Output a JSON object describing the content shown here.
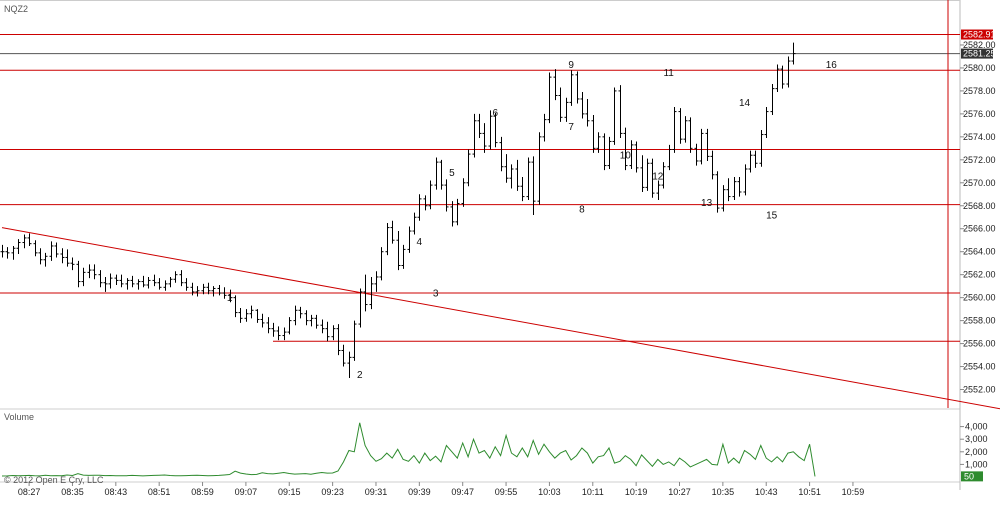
{
  "chart_data": {
    "type": "bar",
    "subtype": "ohlc",
    "symbol": "NQZ2",
    "copyright": "© 2012 Open E Cry, LLC",
    "price_panel": {
      "ylim": [
        2550,
        2584
      ],
      "y_ticks": [
        2552,
        2554,
        2556,
        2558,
        2560,
        2562,
        2564,
        2566,
        2568,
        2570,
        2572,
        2574,
        2576,
        2578,
        2580,
        2582
      ],
      "y_tick_labels": [
        "2552.00",
        "2554.00",
        "2556.00",
        "2558.00",
        "2560.00",
        "2562.00",
        "2564.00",
        "2566.00",
        "2568.00",
        "2570.00",
        "2572.00",
        "2574.00",
        "2576.00",
        "2578.00",
        "2580.00",
        "2582.00"
      ],
      "last_price": 2581.25,
      "last_price_label": "2581.25",
      "bar_color": "#000000",
      "grid": false
    },
    "x_axis": {
      "bar_minutes": 1,
      "start_time": "08:22",
      "ticks": [
        "08:27",
        "08:35",
        "08:43",
        "08:51",
        "08:59",
        "09:07",
        "09:15",
        "09:23",
        "09:31",
        "09:39",
        "09:47",
        "09:55",
        "10:03",
        "10:11",
        "10:19",
        "10:27",
        "10:35",
        "10:43",
        "10:51",
        "10:59"
      ]
    },
    "horizontal_lines": [
      {
        "price": 2582.91,
        "label": "2582.91",
        "color": "#cc0000"
      },
      {
        "price": 2579.8,
        "color": "#cc0000"
      },
      {
        "price": 2572.9,
        "color": "#cc0000"
      },
      {
        "price": 2568.1,
        "color": "#cc0000"
      },
      {
        "price": 2560.4,
        "color": "#cc0000"
      },
      {
        "price": 2556.2,
        "from_time": "09:12",
        "color": "#cc0000"
      }
    ],
    "trend_line": {
      "from": [
        "08:22",
        2566.1
      ],
      "to": [
        "11:30",
        2550.0
      ],
      "color": "#cc0000"
    },
    "vertical_line": {
      "time": "11:08",
      "color": "#cc0000"
    },
    "wave_labels": [
      {
        "text": "1",
        "time": "09:04",
        "price": 2559.7
      },
      {
        "text": "2",
        "time": "09:28",
        "price": 2553.0
      },
      {
        "text": "3",
        "time": "09:42",
        "price": 2560.1
      },
      {
        "text": "4",
        "time": "09:39",
        "price": 2564.6
      },
      {
        "text": "5",
        "time": "09:45",
        "price": 2570.6
      },
      {
        "text": "6",
        "time": "09:53",
        "price": 2575.8
      },
      {
        "text": "7",
        "time": "10:07",
        "price": 2574.6
      },
      {
        "text": "8",
        "time": "10:09",
        "price": 2567.4
      },
      {
        "text": "9",
        "time": "10:07",
        "price": 2580.0
      },
      {
        "text": "10",
        "time": "10:17",
        "price": 2572.1
      },
      {
        "text": "11",
        "time": "10:25",
        "price": 2579.3
      },
      {
        "text": "12",
        "time": "10:23",
        "price": 2570.3
      },
      {
        "text": "13",
        "time": "10:32",
        "price": 2568.0
      },
      {
        "text": "14",
        "time": "10:39",
        "price": 2576.7
      },
      {
        "text": "15",
        "time": "10:44",
        "price": 2566.9
      },
      {
        "text": "16",
        "time": "10:55",
        "price": 2580.0
      }
    ],
    "ohlc": [
      [
        2564.0,
        2564.6,
        2563.5,
        2564.0
      ],
      [
        2564.0,
        2564.4,
        2563.4,
        2563.9
      ],
      [
        2563.9,
        2564.5,
        2563.3,
        2564.3
      ],
      [
        2564.3,
        2565.1,
        2563.8,
        2564.8
      ],
      [
        2564.8,
        2565.5,
        2564.3,
        2565.2
      ],
      [
        2565.2,
        2565.6,
        2564.5,
        2564.7
      ],
      [
        2564.7,
        2565.0,
        2563.6,
        2563.9
      ],
      [
        2563.9,
        2564.3,
        2562.9,
        2563.3
      ],
      [
        2563.3,
        2563.9,
        2562.7,
        2563.6
      ],
      [
        2563.6,
        2564.9,
        2563.2,
        2564.5
      ],
      [
        2564.5,
        2564.8,
        2563.5,
        2563.8
      ],
      [
        2563.8,
        2564.3,
        2563.0,
        2563.5
      ],
      [
        2563.5,
        2564.2,
        2562.7,
        2563.0
      ],
      [
        2563.0,
        2563.5,
        2562.4,
        2562.9
      ],
      [
        2562.9,
        2563.2,
        2560.9,
        2561.4
      ],
      [
        2561.4,
        2562.6,
        2561.0,
        2562.2
      ],
      [
        2562.2,
        2562.9,
        2561.7,
        2562.4
      ],
      [
        2562.4,
        2562.9,
        2561.6,
        2562.0
      ],
      [
        2562.0,
        2562.4,
        2560.9,
        2561.3
      ],
      [
        2561.3,
        2561.8,
        2560.5,
        2561.2
      ],
      [
        2561.2,
        2562.1,
        2560.8,
        2561.7
      ],
      [
        2561.7,
        2562.0,
        2561.1,
        2561.5
      ],
      [
        2561.5,
        2562.0,
        2560.9,
        2561.2
      ],
      [
        2561.2,
        2561.7,
        2560.7,
        2561.5
      ],
      [
        2561.5,
        2561.9,
        2560.9,
        2561.2
      ],
      [
        2561.2,
        2561.6,
        2560.7,
        2561.4
      ],
      [
        2561.4,
        2561.9,
        2560.9,
        2561.1
      ],
      [
        2561.1,
        2561.8,
        2560.8,
        2561.5
      ],
      [
        2561.5,
        2562.0,
        2561.0,
        2561.3
      ],
      [
        2561.3,
        2561.7,
        2560.7,
        2560.9
      ],
      [
        2560.9,
        2561.5,
        2560.6,
        2561.2
      ],
      [
        2561.2,
        2561.8,
        2560.9,
        2561.6
      ],
      [
        2561.6,
        2562.3,
        2561.3,
        2562.0
      ],
      [
        2562.0,
        2562.4,
        2561.0,
        2561.3
      ],
      [
        2561.3,
        2561.7,
        2560.6,
        2560.9
      ],
      [
        2560.9,
        2561.3,
        2560.2,
        2560.5
      ],
      [
        2560.5,
        2561.0,
        2560.1,
        2560.6
      ],
      [
        2560.6,
        2561.2,
        2560.3,
        2560.9
      ],
      [
        2560.9,
        2561.3,
        2560.3,
        2560.6
      ],
      [
        2560.6,
        2561.0,
        2560.1,
        2560.8
      ],
      [
        2560.8,
        2561.1,
        2560.2,
        2560.4
      ],
      [
        2560.4,
        2560.9,
        2559.9,
        2560.2
      ],
      [
        2560.2,
        2560.7,
        2559.6,
        2560.0
      ],
      [
        2560.0,
        2560.2,
        2558.3,
        2558.7
      ],
      [
        2558.7,
        2559.1,
        2557.8,
        2558.2
      ],
      [
        2558.2,
        2559.0,
        2557.9,
        2558.6
      ],
      [
        2558.6,
        2559.3,
        2558.2,
        2558.9
      ],
      [
        2558.9,
        2559.0,
        2557.8,
        2558.1
      ],
      [
        2558.1,
        2558.6,
        2557.4,
        2557.8
      ],
      [
        2557.8,
        2558.3,
        2556.9,
        2557.3
      ],
      [
        2557.3,
        2557.8,
        2556.6,
        2557.1
      ],
      [
        2557.1,
        2557.5,
        2556.3,
        2556.7
      ],
      [
        2556.7,
        2557.4,
        2556.3,
        2557.0
      ],
      [
        2557.0,
        2558.3,
        2556.8,
        2558.0
      ],
      [
        2558.0,
        2559.3,
        2557.6,
        2558.9
      ],
      [
        2558.9,
        2559.2,
        2558.2,
        2558.6
      ],
      [
        2558.6,
        2558.9,
        2557.6,
        2558.0
      ],
      [
        2558.0,
        2558.5,
        2557.5,
        2558.2
      ],
      [
        2558.2,
        2558.5,
        2557.3,
        2557.6
      ],
      [
        2557.6,
        2558.1,
        2556.9,
        2557.3
      ],
      [
        2557.3,
        2557.9,
        2556.2,
        2556.6
      ],
      [
        2556.6,
        2557.6,
        2556.3,
        2557.3
      ],
      [
        2557.3,
        2557.7,
        2555.0,
        2555.4
      ],
      [
        2555.4,
        2555.9,
        2554.0,
        2554.3
      ],
      [
        2554.3,
        2555.3,
        2553.0,
        2554.8
      ],
      [
        2554.8,
        2558.0,
        2554.5,
        2557.7
      ],
      [
        2557.7,
        2560.8,
        2557.4,
        2560.5
      ],
      [
        2560.5,
        2562.0,
        2558.8,
        2559.4
      ],
      [
        2559.4,
        2561.8,
        2559.0,
        2561.2
      ],
      [
        2561.2,
        2562.3,
        2560.5,
        2561.8
      ],
      [
        2561.8,
        2564.4,
        2561.5,
        2564.0
      ],
      [
        2564.0,
        2566.5,
        2563.7,
        2566.1
      ],
      [
        2566.1,
        2566.7,
        2564.7,
        2565.0
      ],
      [
        2565.0,
        2565.8,
        2562.4,
        2562.8
      ],
      [
        2562.8,
        2564.6,
        2562.5,
        2564.2
      ],
      [
        2564.2,
        2566.2,
        2563.9,
        2565.8
      ],
      [
        2565.8,
        2567.4,
        2565.5,
        2567.0
      ],
      [
        2567.0,
        2569.0,
        2566.7,
        2568.6
      ],
      [
        2568.6,
        2568.9,
        2567.6,
        2568.0
      ],
      [
        2568.0,
        2570.2,
        2567.7,
        2569.8
      ],
      [
        2569.8,
        2572.2,
        2569.4,
        2571.8
      ],
      [
        2571.8,
        2572.0,
        2569.4,
        2569.8
      ],
      [
        2569.8,
        2570.3,
        2567.5,
        2567.9
      ],
      [
        2567.9,
        2568.4,
        2566.2,
        2566.6
      ],
      [
        2566.6,
        2568.6,
        2566.3,
        2568.2
      ],
      [
        2568.2,
        2570.4,
        2567.9,
        2570.0
      ],
      [
        2570.0,
        2572.9,
        2569.7,
        2572.5
      ],
      [
        2572.5,
        2576.0,
        2572.2,
        2575.4
      ],
      [
        2575.4,
        2576.0,
        2573.9,
        2574.3
      ],
      [
        2574.3,
        2575.2,
        2572.6,
        2573.2
      ],
      [
        2573.2,
        2576.3,
        2572.9,
        2575.8
      ],
      [
        2575.8,
        2576.1,
        2573.1,
        2573.5
      ],
      [
        2573.5,
        2574.0,
        2571.0,
        2571.4
      ],
      [
        2571.4,
        2572.5,
        2570.0,
        2570.4
      ],
      [
        2570.4,
        2571.6,
        2569.5,
        2571.2
      ],
      [
        2571.2,
        2572.0,
        2569.3,
        2569.7
      ],
      [
        2569.7,
        2570.5,
        2568.4,
        2568.8
      ],
      [
        2568.8,
        2572.2,
        2568.5,
        2571.8
      ],
      [
        2571.8,
        2572.3,
        2567.2,
        2568.4
      ],
      [
        2568.4,
        2574.4,
        2568.1,
        2574.0
      ],
      [
        2574.0,
        2576.0,
        2573.6,
        2575.5
      ],
      [
        2575.5,
        2579.6,
        2575.2,
        2579.2
      ],
      [
        2579.2,
        2579.9,
        2577.2,
        2577.6
      ],
      [
        2577.6,
        2578.3,
        2575.3,
        2575.7
      ],
      [
        2575.7,
        2577.4,
        2575.3,
        2577.0
      ],
      [
        2577.0,
        2579.8,
        2576.7,
        2579.4
      ],
      [
        2579.4,
        2579.7,
        2576.9,
        2577.3
      ],
      [
        2577.3,
        2577.9,
        2575.6,
        2576.0
      ],
      [
        2576.0,
        2577.3,
        2574.9,
        2575.4
      ],
      [
        2575.4,
        2575.9,
        2572.6,
        2573.0
      ],
      [
        2573.0,
        2574.4,
        2572.6,
        2574.0
      ],
      [
        2574.0,
        2574.3,
        2571.1,
        2571.5
      ],
      [
        2571.5,
        2574.0,
        2571.2,
        2573.6
      ],
      [
        2573.6,
        2578.3,
        2573.3,
        2578.0
      ],
      [
        2578.0,
        2578.5,
        2573.9,
        2574.3
      ],
      [
        2574.3,
        2574.8,
        2571.1,
        2571.5
      ],
      [
        2571.5,
        2573.7,
        2571.2,
        2573.3
      ],
      [
        2573.3,
        2573.6,
        2570.9,
        2571.3
      ],
      [
        2571.3,
        2572.4,
        2569.2,
        2569.6
      ],
      [
        2569.6,
        2572.1,
        2569.3,
        2571.7
      ],
      [
        2571.7,
        2572.1,
        2568.7,
        2569.1
      ],
      [
        2569.1,
        2570.2,
        2568.5,
        2569.8
      ],
      [
        2569.8,
        2571.8,
        2569.5,
        2571.4
      ],
      [
        2571.4,
        2573.3,
        2571.1,
        2572.9
      ],
      [
        2572.9,
        2576.6,
        2572.6,
        2576.2
      ],
      [
        2576.2,
        2576.5,
        2573.4,
        2573.8
      ],
      [
        2573.8,
        2575.8,
        2573.5,
        2575.4
      ],
      [
        2575.4,
        2575.7,
        2572.6,
        2573.0
      ],
      [
        2573.0,
        2573.4,
        2571.5,
        2571.9
      ],
      [
        2571.9,
        2574.7,
        2571.6,
        2574.3
      ],
      [
        2574.3,
        2574.7,
        2571.9,
        2572.3
      ],
      [
        2572.3,
        2572.8,
        2570.3,
        2570.7
      ],
      [
        2570.7,
        2571.0,
        2567.4,
        2567.8
      ],
      [
        2567.8,
        2569.8,
        2567.5,
        2569.4
      ],
      [
        2569.4,
        2570.4,
        2568.4,
        2568.8
      ],
      [
        2568.8,
        2570.5,
        2568.5,
        2570.1
      ],
      [
        2570.1,
        2570.5,
        2568.8,
        2569.2
      ],
      [
        2569.2,
        2571.6,
        2568.9,
        2571.2
      ],
      [
        2571.2,
        2572.8,
        2570.9,
        2572.4
      ],
      [
        2572.4,
        2572.8,
        2571.3,
        2571.7
      ],
      [
        2571.7,
        2574.6,
        2571.4,
        2574.2
      ],
      [
        2574.2,
        2576.6,
        2573.9,
        2576.2
      ],
      [
        2576.2,
        2578.6,
        2575.9,
        2578.2
      ],
      [
        2578.2,
        2580.3,
        2577.9,
        2579.9
      ],
      [
        2579.9,
        2580.2,
        2578.2,
        2578.6
      ],
      [
        2578.6,
        2581.0,
        2578.3,
        2580.6
      ],
      [
        2580.6,
        2582.2,
        2580.3,
        2581.25
      ]
    ],
    "volume_panel": {
      "label": "Volume",
      "ylim": [
        0,
        5000
      ],
      "y_ticks": [
        1000,
        2000,
        3000,
        4000
      ],
      "y_tick_labels": [
        "1,000",
        "2,000",
        "3,000",
        "4,000"
      ],
      "last_volume_label": "50",
      "color": "#2e8b2e",
      "values": [
        80,
        90,
        120,
        100,
        110,
        130,
        95,
        85,
        140,
        100,
        115,
        105,
        160,
        120,
        260,
        150,
        125,
        135,
        145,
        110,
        120,
        100,
        95,
        105,
        125,
        115,
        90,
        110,
        130,
        140,
        160,
        120,
        100,
        95,
        110,
        125,
        140,
        120,
        100,
        115,
        130,
        160,
        200,
        460,
        310,
        240,
        190,
        210,
        330,
        270,
        250,
        300,
        360,
        280,
        230,
        250,
        270,
        220,
        290,
        360,
        310,
        320,
        480,
        1200,
        2100,
        2000,
        4300,
        2500,
        1700,
        1250,
        1450,
        1900,
        1500,
        2200,
        1400,
        1250,
        1700,
        1100,
        1900,
        1300,
        1650,
        1200,
        2500,
        2000,
        1500,
        2700,
        1600,
        3000,
        1900,
        2100,
        1500,
        2400,
        1700,
        3300,
        1900,
        1600,
        2300,
        1600,
        2900,
        1800,
        2600,
        2000,
        1500,
        1900,
        2100,
        1350,
        1700,
        2300,
        1900,
        1100,
        1600,
        1700,
        2300,
        1100,
        1250,
        1700,
        1400,
        900,
        1750,
        1300,
        850,
        1400,
        1000,
        1200,
        900,
        1500,
        1200,
        800,
        1000,
        1200,
        1400,
        1000,
        950,
        2600,
        1100,
        1500,
        1100,
        2100,
        1800,
        1400,
        2500,
        1500,
        1200,
        1600,
        1200,
        1900,
        2000,
        1600,
        1300,
        2600,
        50
      ]
    }
  }
}
